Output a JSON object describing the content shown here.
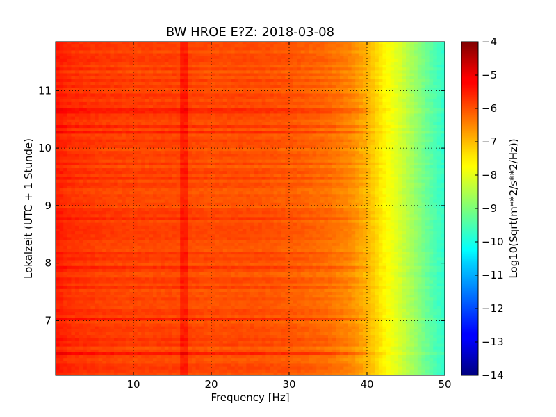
{
  "chart_data": {
    "type": "heatmap",
    "title": "BW HROE E?Z: 2018-03-08",
    "xlabel": "Frequency [Hz]",
    "ylabel": "Lokalzeit (UTC + 1 Stunde)",
    "xlim": [
      0,
      50
    ],
    "ylim": [
      11.85,
      6.05
    ],
    "x_ticks": [
      10,
      20,
      30,
      40,
      50
    ],
    "y_ticks": [
      7,
      8,
      9,
      10,
      11
    ],
    "grid": true,
    "colorbar": {
      "label": "Log10(Sqrt(m**2/s**2/Hz))",
      "range": [
        -14,
        -4
      ],
      "ticks": [
        -4,
        -5,
        -6,
        -7,
        -8,
        -9,
        -10,
        -11,
        -12,
        -13,
        -14
      ],
      "colormap": "jet"
    },
    "spectrum_profile": {
      "frequency_hz": [
        0,
        2,
        5,
        10,
        15,
        20,
        25,
        30,
        35,
        38,
        40,
        42,
        44,
        46,
        48,
        50
      ],
      "log10_amplitude": [
        -5.5,
        -5.7,
        -5.8,
        -5.9,
        -5.9,
        -6.0,
        -6.0,
        -6.1,
        -6.3,
        -6.6,
        -7.0,
        -7.6,
        -8.1,
        -8.7,
        -9.3,
        -9.8
      ]
    },
    "features": [
      {
        "type": "vertical_line",
        "frequency_hz": 16.7,
        "delta": 0.4
      },
      {
        "type": "horizontal_band",
        "time": 10.15,
        "freq_range": [
          23,
          29
        ],
        "delta": 0.35
      },
      {
        "type": "horizontal_band",
        "time": 7.95,
        "freq_range": [
          6,
          12
        ],
        "delta": 0.3
      },
      {
        "type": "horizontal_band",
        "time": 11.12,
        "freq_range": [
          3,
          10
        ],
        "delta": 0.3
      },
      {
        "type": "horizontal_band",
        "time": 8.05,
        "freq_range": [
          24,
          29
        ],
        "delta": 0.3
      }
    ]
  }
}
